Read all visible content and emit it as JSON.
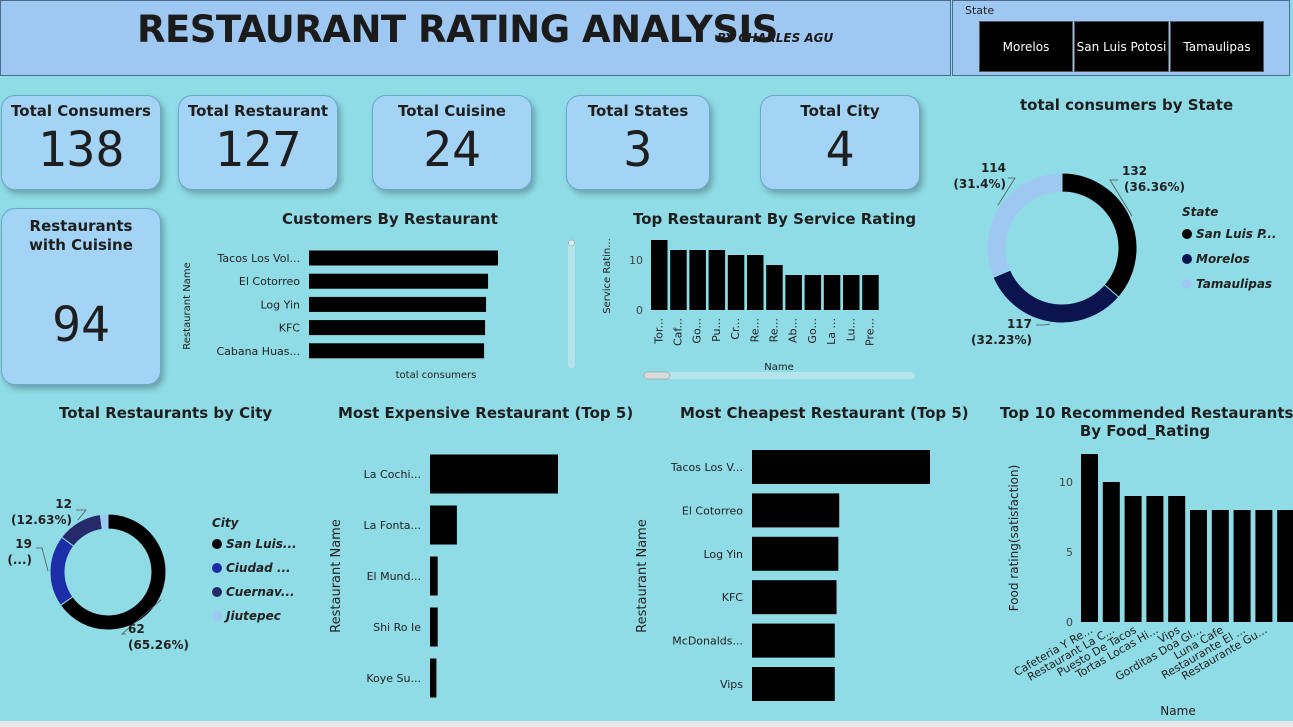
{
  "header": {
    "title": "RESTAURANT RATING ANALYSIS",
    "byline": "BY CHARLES AGU"
  },
  "slicer": {
    "label": "State",
    "options": [
      "Morelos",
      "San Luis Potosi",
      "Tamaulipas"
    ]
  },
  "kpis": [
    {
      "title": "Total Consumers",
      "value": "138"
    },
    {
      "title": "Total Restaurant",
      "value": "127"
    },
    {
      "title": "Total Cuisine",
      "value": "24"
    },
    {
      "title": "Total States",
      "value": "3"
    },
    {
      "title": "Total City",
      "value": "4"
    }
  ],
  "cuisine_card": {
    "title": "Restaurants with Cuisine",
    "value": "94"
  },
  "colors": {
    "bar": "#000000",
    "navy": "#0c1450",
    "light": "#9ec8f2",
    "blue": "#1b2ea8",
    "darknavy": "#252a6a"
  },
  "chart_data": [
    {
      "id": "customers_by_restaurant",
      "type": "bar",
      "orientation": "horizontal",
      "title": "Customers By Restaurant",
      "xlabel": "total consumers",
      "ylabel": "Restaurant Name",
      "categories": [
        "Tacos Los Vol...",
        "El Cotorreo",
        "Log Yin",
        "KFC",
        "Cabana Huas..."
      ],
      "values": [
        19,
        18,
        17.8,
        17.7,
        17.6
      ],
      "xlim": [
        0,
        19
      ]
    },
    {
      "id": "service_rating",
      "type": "bar",
      "title": "Top Restaurant By Service Rating",
      "xlabel": "Name",
      "ylabel": "Service Ratin...",
      "categories": [
        "Tor...",
        "Caf...",
        "Go...",
        "Pu...",
        "Cr...",
        "Re...",
        "Re...",
        "Ab...",
        "Go...",
        "La ...",
        "Lu...",
        "Pre..."
      ],
      "values": [
        14,
        12,
        12,
        12,
        11,
        11,
        9,
        7,
        7,
        7,
        7,
        7
      ],
      "yticks": [
        "10",
        "0"
      ],
      "ylim": [
        0,
        16
      ]
    },
    {
      "id": "consumers_by_state",
      "type": "pie",
      "title": "total consumers by State",
      "legend_title": "State",
      "slices": [
        {
          "label": "San Luis P...",
          "value": 132,
          "text": "132",
          "pct": "(36.36%)",
          "color": "#000000"
        },
        {
          "label": "Morelos",
          "value": 117,
          "text": "117",
          "pct": "(32.23%)",
          "color": "#0c1450"
        },
        {
          "label": "Tamaulipas",
          "value": 114,
          "text": "114",
          "pct": "(31.4%)",
          "color": "#9ec8f2"
        }
      ]
    },
    {
      "id": "restaurants_by_city",
      "type": "pie",
      "title": "Total Restaurants by City",
      "legend_title": "City",
      "slices": [
        {
          "label": "San Luis...",
          "value": 62,
          "text": "62",
          "pct": "(65.26%)",
          "color": "#000000"
        },
        {
          "label": "Ciudad ...",
          "value": 19,
          "text": "19",
          "pct": "(...)",
          "color": "#1b2ea8"
        },
        {
          "label": "Cuernav...",
          "value": 12,
          "text": "12",
          "pct": "(12.63%)",
          "color": "#252a6a"
        },
        {
          "label": "Jiutepec",
          "value": 2,
          "text": "",
          "pct": "",
          "color": "#9ec8f2"
        }
      ]
    },
    {
      "id": "most_expensive",
      "type": "bar",
      "orientation": "horizontal",
      "title": "Most Expensive Restaurant (Top 5)",
      "ylabel": "Restaurant Name",
      "categories": [
        "La Cochi...",
        "La Fonta...",
        "El Mund...",
        "Shi Ro Ie",
        "Koye Su..."
      ],
      "values": [
        100,
        21,
        6,
        6,
        5
      ],
      "xlim": [
        0,
        100
      ]
    },
    {
      "id": "most_cheapest",
      "type": "bar",
      "orientation": "horizontal",
      "title": "Most Cheapest Restaurant (Top 5)",
      "ylabel": "Restaurant Name",
      "categories": [
        "Tacos Los V...",
        "El Cotorreo",
        "Log Yin",
        "KFC",
        "McDonalds...",
        "Vips"
      ],
      "values": [
        100,
        49,
        48.5,
        47.5,
        46.5,
        46.5
      ],
      "xlim": [
        0,
        100
      ]
    },
    {
      "id": "food_rating",
      "type": "bar",
      "title": "Top 10 Recommended Restaurants By Food_Rating",
      "title_lines": [
        "Top 10 Recommended Restaurants",
        "By Food_Rating"
      ],
      "xlabel": "Name",
      "ylabel": "Food rating(satisfaction)",
      "categories": [
        "Cafeteria Y Re...",
        "Restaurant La C...",
        "Puesto De Tacos",
        "Tortas Locas Hi...",
        "Vips",
        "Gorditas Doa Gl...",
        "Luna Cafe",
        "Restaurante El ...",
        "Restaurante Gu...",
        ""
      ],
      "values": [
        12,
        10,
        9,
        9,
        9,
        8,
        8,
        8,
        8,
        8
      ],
      "yticks": [
        "10",
        "5",
        "0"
      ],
      "ylim": [
        0,
        12
      ]
    }
  ]
}
